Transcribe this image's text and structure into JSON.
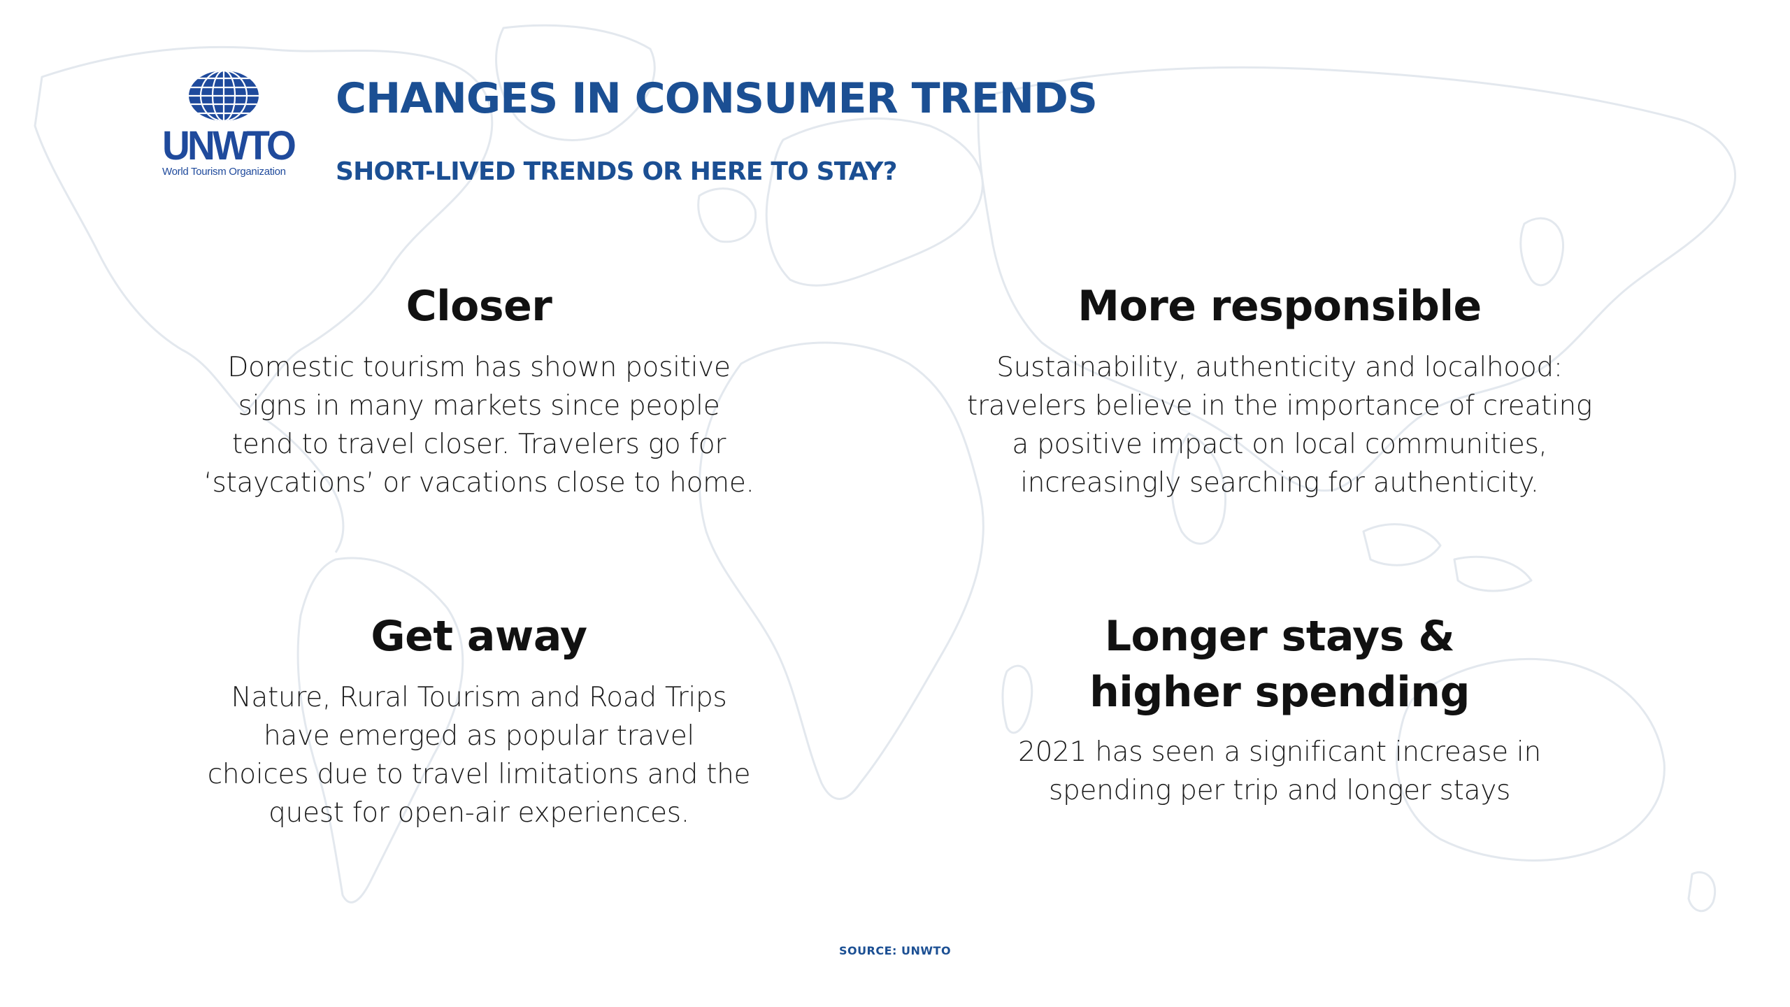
{
  "header": {
    "title": "CHANGES IN CONSUMER TRENDS",
    "subtitle": "SHORT-LIVED TRENDS OR HERE TO STAY?"
  },
  "logo": {
    "name": "UNWTO",
    "tagline": "World Tourism Organization"
  },
  "trends": [
    {
      "heading": "Closer",
      "body": "Domestic tourism has shown positive\nsigns in many markets since people\ntend to travel closer. Travelers go for\n‘staycations’ or vacations close to home."
    },
    {
      "heading": "More responsible",
      "body": "Sustainability, authenticity and localhood:\ntravelers believe in the importance of creating\na positive impact on local communities,\nincreasingly searching for authenticity."
    },
    {
      "heading": "Get away",
      "body": "Nature, Rural Tourism and Road Trips\nhave emerged  as  popular  travel\nchoices  due  to travel limitations and the\nquest for open-air experiences."
    },
    {
      "heading": "Longer stays &\nhigher spending",
      "body": "2021 has seen a significant increase in\nspending per trip and longer stays"
    }
  ],
  "footer": {
    "source": "SOURCE: UNWTO"
  },
  "colors": {
    "brand": "#1b4f93",
    "map": "#e6ebf0"
  }
}
